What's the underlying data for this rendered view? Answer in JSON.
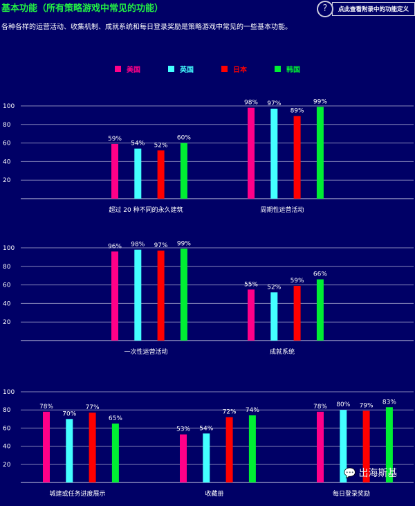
{
  "header": {
    "title": "基本功能（所有策略游戏中常见的功能）",
    "subtitle": "各种各样的运营活动、收集机制、成就系统和每日登录奖励是策略游戏中常见的一些基本功能。",
    "help_label": "点此查看附录中的功能定义",
    "help_icon": "question-cursor-icon"
  },
  "watermark": "出海斯基",
  "colors": {
    "美国": "#ff0088",
    "英国": "#44ffff",
    "日本": "#ff0000",
    "韩国": "#00ee33",
    "background": "#000066",
    "grid": "#8888bb"
  },
  "chart_data": [
    {
      "type": "bar",
      "ylim": [
        0,
        100
      ],
      "yticks": [
        20,
        40,
        60,
        80,
        100
      ],
      "legend": "top-center",
      "series_names": [
        "美国",
        "英国",
        "日本",
        "韩国"
      ],
      "categories": [
        "超过 20 种不同的永久建筑",
        "周期性运营活动"
      ],
      "values": [
        [
          59,
          54,
          52,
          60
        ],
        [
          98,
          97,
          89,
          99
        ]
      ]
    },
    {
      "type": "bar",
      "ylim": [
        0,
        100
      ],
      "yticks": [
        20,
        40,
        60,
        80,
        100
      ],
      "series_names": [
        "美国",
        "英国",
        "日本",
        "韩国"
      ],
      "categories": [
        "一次性运营活动",
        "成就系统"
      ],
      "values": [
        [
          96,
          98,
          97,
          99
        ],
        [
          55,
          52,
          59,
          66
        ]
      ]
    },
    {
      "type": "bar",
      "ylim": [
        0,
        100
      ],
      "yticks": [
        20,
        40,
        60,
        80,
        100
      ],
      "series_names": [
        "美国",
        "英国",
        "日本",
        "韩国"
      ],
      "categories": [
        "城建或任务进度展示",
        "收藏册",
        "每日登录奖励"
      ],
      "values": [
        [
          78,
          70,
          77,
          65
        ],
        [
          53,
          54,
          72,
          74
        ],
        [
          78,
          80,
          79,
          83
        ]
      ]
    }
  ]
}
